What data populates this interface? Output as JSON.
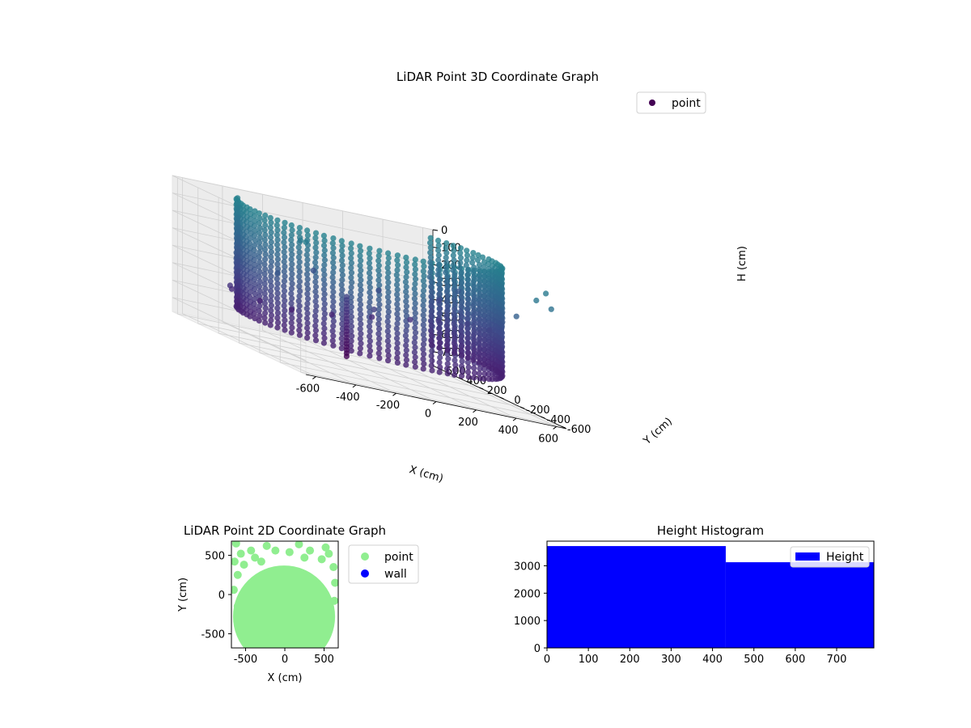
{
  "chart_data": [
    {
      "type": "scatter",
      "projection": "3d",
      "title": "LiDAR Point 3D Coordinate Graph",
      "xlabel": "X (cm)",
      "ylabel": "Y (cm)",
      "zlabel": "H (cm)",
      "x_ticks": [
        -600,
        -400,
        -200,
        0,
        200,
        400,
        600
      ],
      "y_ticks": [
        -600,
        -400,
        -200,
        0,
        200,
        400,
        600
      ],
      "z_ticks": [
        0,
        100,
        200,
        300,
        400,
        500,
        600,
        700
      ],
      "xlim": [
        -650,
        650
      ],
      "ylim": [
        -650,
        650
      ],
      "zlim": [
        0,
        780
      ],
      "z_inverted": true,
      "colormap": "viridis",
      "legend": {
        "labels": [
          "point"
        ],
        "placement": "top-right",
        "marker_color": "#440154"
      },
      "grid": true,
      "description_series": {
        "name": "point",
        "wall_ring": {
          "radius": 620,
          "arc_deg": [
            -35,
            215
          ],
          "h_range": [
            0,
            640
          ]
        },
        "inner_column": {
          "x": 30,
          "y": 280,
          "h_range": [
            430,
            780
          ]
        },
        "scattered_samples": [
          [
            -500,
            380,
            520
          ],
          [
            -420,
            520,
            560
          ],
          [
            -260,
            560,
            600
          ],
          [
            -80,
            600,
            620
          ],
          [
            120,
            600,
            600
          ],
          [
            300,
            560,
            560
          ],
          [
            460,
            500,
            520
          ],
          [
            560,
            420,
            480
          ],
          [
            620,
            260,
            440
          ],
          [
            640,
            80,
            420
          ],
          [
            -560,
            -200,
            300
          ],
          [
            580,
            -300,
            250
          ],
          [
            200,
            300,
            360
          ],
          [
            -100,
            350,
            330
          ],
          [
            400,
            100,
            300
          ],
          [
            100,
            150,
            450
          ],
          [
            600,
            -600,
            120
          ],
          [
            650,
            -450,
            60
          ],
          [
            500,
            -650,
            80
          ],
          [
            -650,
            -650,
            20
          ],
          [
            -600,
            -500,
            40
          ],
          [
            350,
            -600,
            30
          ],
          [
            700,
            500,
            300
          ],
          [
            680,
            650,
            400
          ]
        ]
      }
    },
    {
      "type": "scatter",
      "title": "LiDAR Point 2D Coordinate Graph",
      "xlabel": "X (cm)",
      "ylabel": "Y (cm)",
      "x_ticks": [
        -500,
        0,
        500
      ],
      "y_ticks": [
        -500,
        0,
        500
      ],
      "xlim": [
        -680,
        680
      ],
      "ylim": [
        -680,
        680
      ],
      "legend": {
        "placement": "outside-right"
      },
      "series": [
        {
          "name": "point",
          "color": "#90ee90",
          "disc": {
            "center": [
              -10,
              -280
            ],
            "radius": 650
          },
          "extra_points": [
            [
              -620,
              650
            ],
            [
              -560,
              520
            ],
            [
              -430,
              560
            ],
            [
              -520,
              380
            ],
            [
              -600,
              250
            ],
            [
              -640,
              420
            ],
            [
              -380,
              470
            ],
            [
              -230,
              620
            ],
            [
              -120,
              560
            ],
            [
              60,
              540
            ],
            [
              180,
              640
            ],
            [
              320,
              560
            ],
            [
              470,
              450
            ],
            [
              560,
              520
            ],
            [
              620,
              350
            ],
            [
              640,
              150
            ],
            [
              -650,
              60
            ],
            [
              -600,
              -150
            ],
            [
              630,
              -80
            ],
            [
              520,
              600
            ],
            [
              -300,
              420
            ],
            [
              250,
              470
            ]
          ]
        },
        {
          "name": "wall",
          "color": "#0000ff"
        }
      ]
    },
    {
      "type": "bar",
      "subtype": "histogram",
      "title": "Height Histogram",
      "bins": [
        [
          0,
          432
        ],
        [
          432,
          790
        ]
      ],
      "values": [
        3720,
        3130
      ],
      "xlim": [
        0,
        790
      ],
      "ylim": [
        0,
        3900
      ],
      "x_ticks": [
        0,
        100,
        200,
        300,
        400,
        500,
        600,
        700
      ],
      "y_ticks": [
        0,
        1000,
        2000,
        3000
      ],
      "series": [
        {
          "name": "Height",
          "color": "#0000ff"
        }
      ],
      "legend": {
        "placement": "top-right"
      }
    }
  ]
}
